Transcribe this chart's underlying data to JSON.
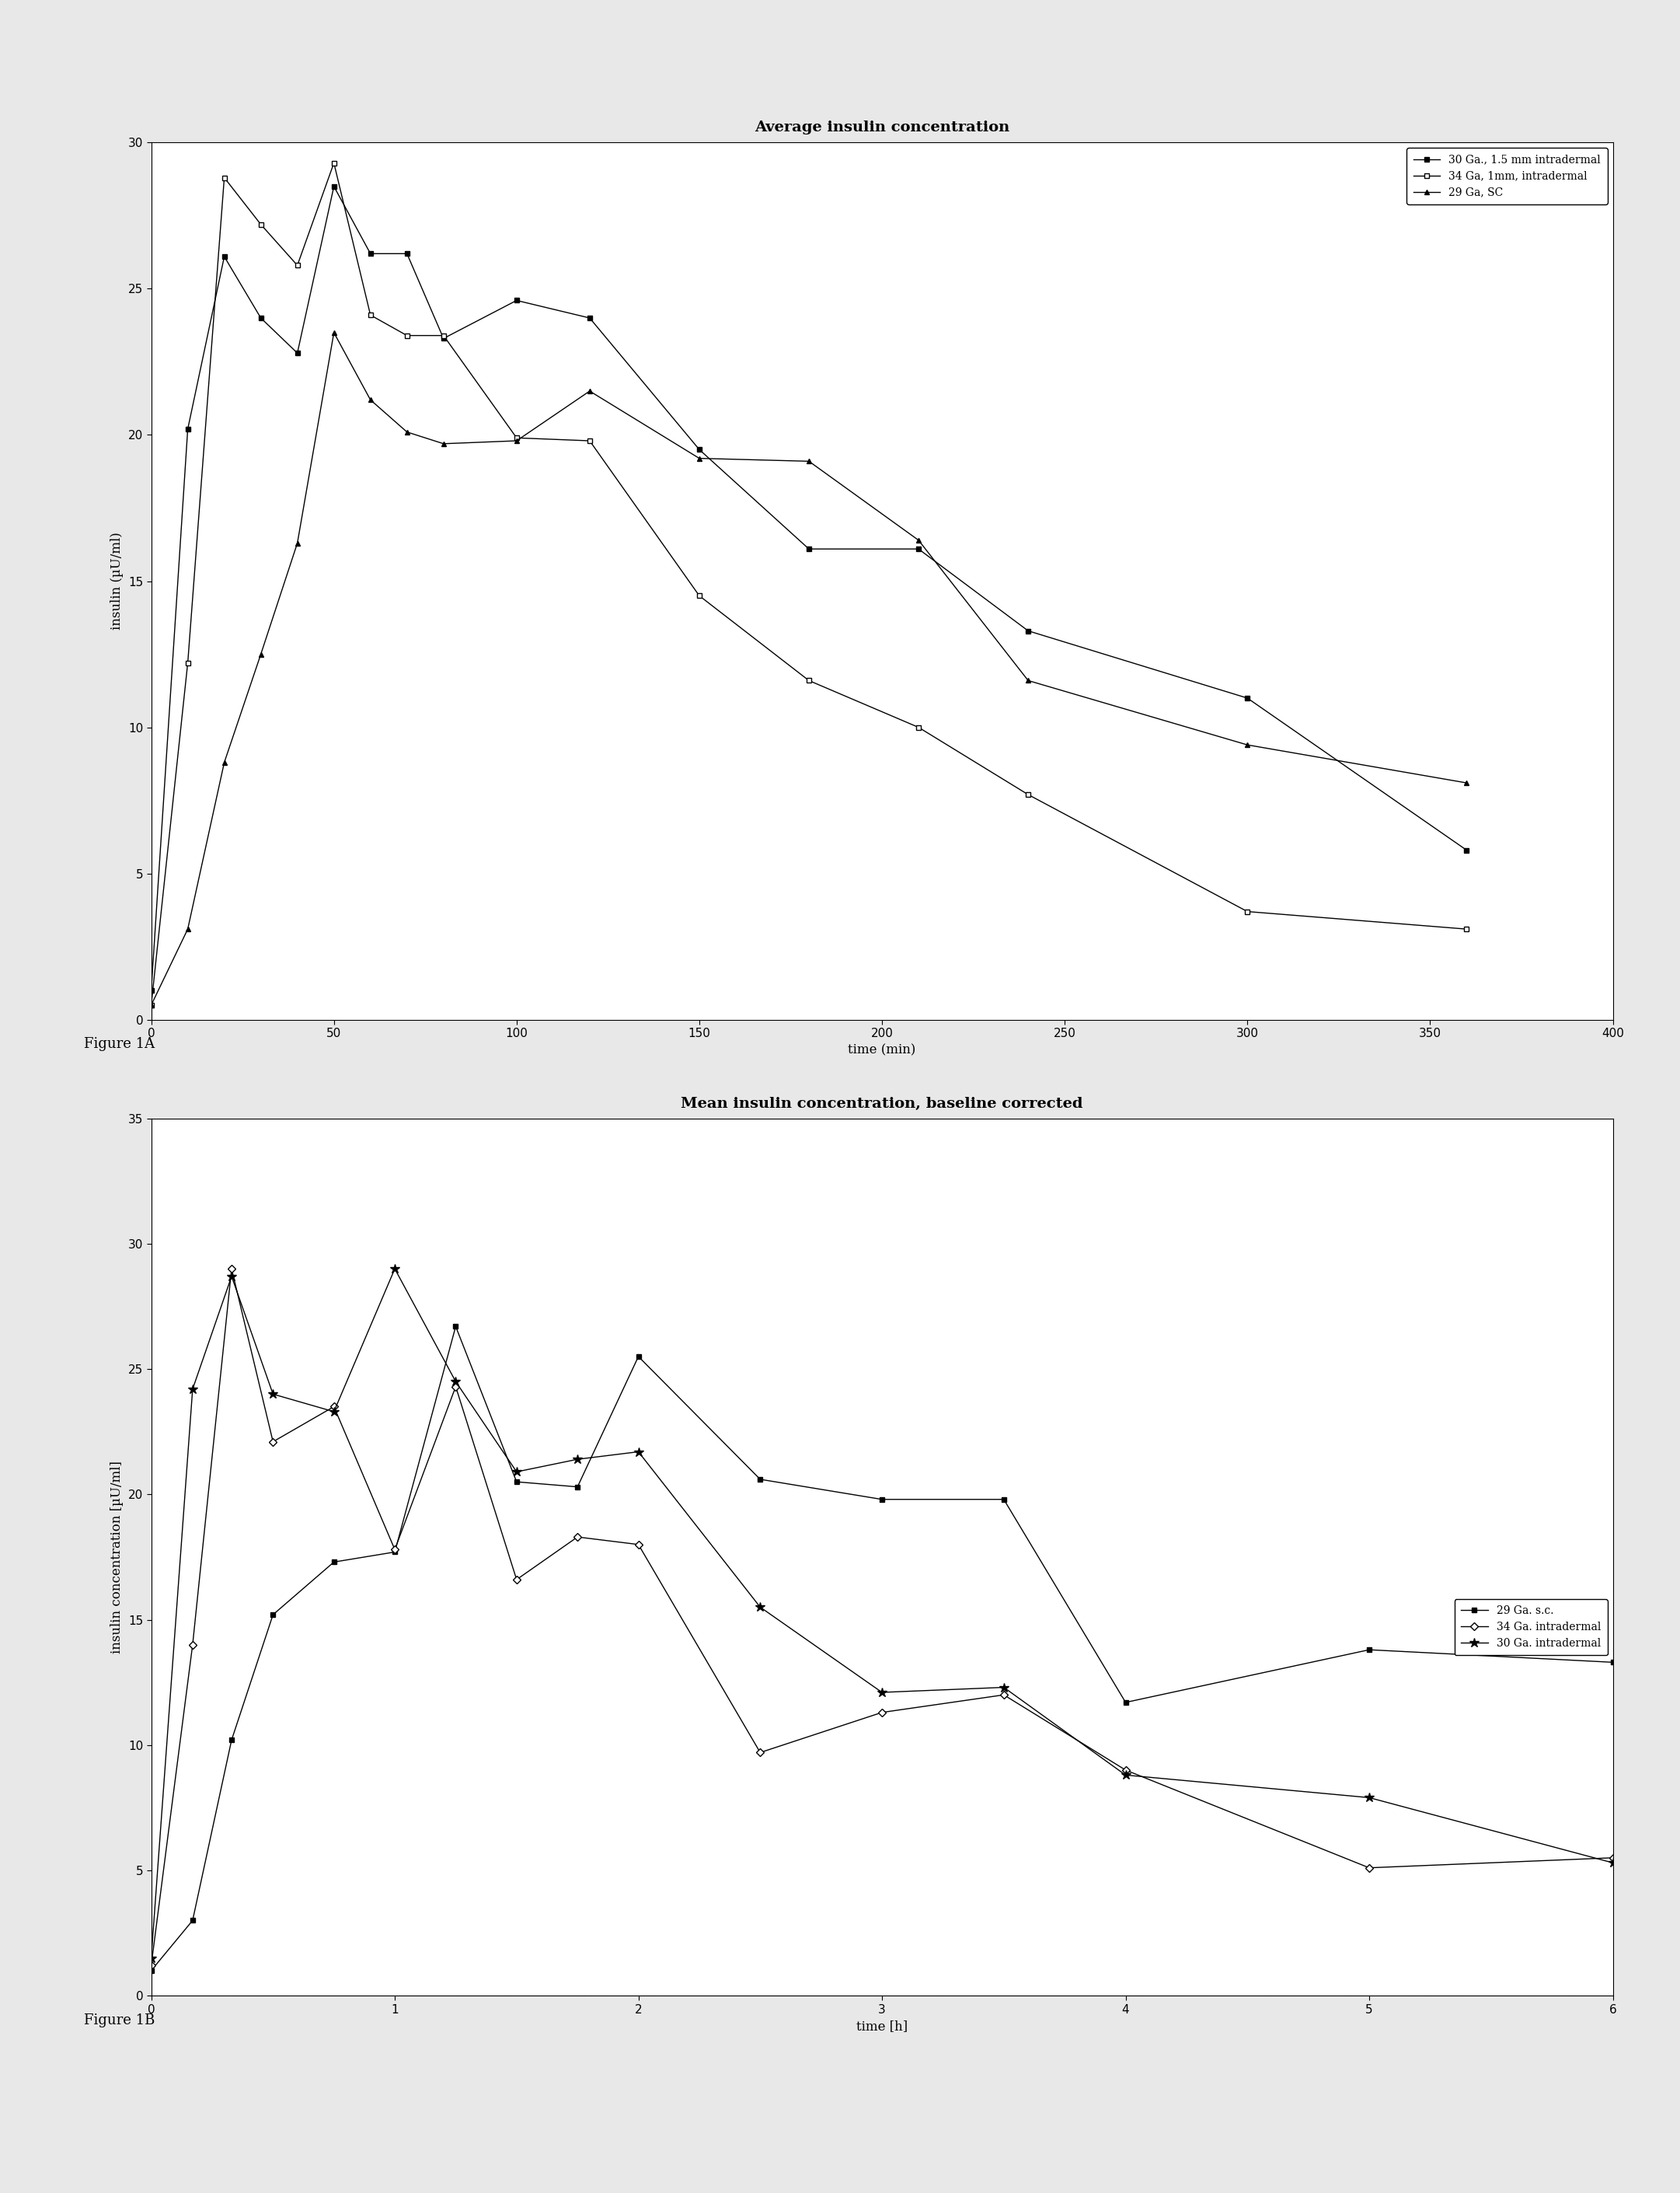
{
  "fig1A": {
    "title": "Average insulin concentration",
    "xlabel": "time (min)",
    "ylabel": "insulin (µU/ml)",
    "xlim": [
      0,
      400
    ],
    "ylim": [
      0,
      30
    ],
    "yticks": [
      0,
      5,
      10,
      15,
      20,
      25,
      30
    ],
    "xticks": [
      0,
      50,
      100,
      150,
      200,
      250,
      300,
      350,
      400
    ],
    "series": [
      {
        "label": "30 Ga., 1.5 mm intradermal",
        "x": [
          0,
          10,
          20,
          30,
          40,
          50,
          60,
          70,
          80,
          100,
          120,
          150,
          180,
          210,
          240,
          300,
          360
        ],
        "y": [
          1.0,
          20.2,
          26.1,
          24.0,
          22.8,
          28.5,
          26.2,
          26.2,
          23.3,
          24.6,
          24.0,
          19.5,
          16.1,
          16.1,
          13.3,
          11.0,
          5.8
        ],
        "marker": "s",
        "marker_fill": "black",
        "linestyle": "-",
        "color": "black"
      },
      {
        "label": "34 Ga, 1mm, intradermal",
        "x": [
          0,
          10,
          20,
          30,
          40,
          50,
          60,
          70,
          80,
          100,
          120,
          150,
          180,
          210,
          240,
          300,
          360
        ],
        "y": [
          0.5,
          12.2,
          28.8,
          27.2,
          25.8,
          29.3,
          24.1,
          23.4,
          23.4,
          19.9,
          19.8,
          14.5,
          11.6,
          10.0,
          7.7,
          3.7,
          3.1
        ],
        "marker": "s",
        "marker_fill": "white",
        "linestyle": "-",
        "color": "black"
      },
      {
        "label": "29 Ga, SC",
        "x": [
          0,
          10,
          20,
          30,
          40,
          50,
          60,
          70,
          80,
          100,
          120,
          150,
          180,
          210,
          240,
          300,
          360
        ],
        "y": [
          0.5,
          3.1,
          8.8,
          12.5,
          16.3,
          23.5,
          21.2,
          20.1,
          19.7,
          19.8,
          21.5,
          19.2,
          19.1,
          16.4,
          11.6,
          9.4,
          8.1
        ],
        "marker": "^",
        "marker_fill": "black",
        "linestyle": "-",
        "color": "black"
      }
    ]
  },
  "fig1B": {
    "title": "Mean insulin concentration, baseline corrected",
    "xlabel": "time [h]",
    "ylabel": "insulin concentration [µU/ml]",
    "xlim": [
      0,
      6
    ],
    "ylim": [
      0,
      35
    ],
    "yticks": [
      0,
      5,
      10,
      15,
      20,
      25,
      30,
      35
    ],
    "xticks": [
      0,
      1,
      2,
      3,
      4,
      5,
      6
    ],
    "series": [
      {
        "label": "29 Ga. s.c.",
        "x": [
          0,
          0.17,
          0.33,
          0.5,
          0.75,
          1.0,
          1.25,
          1.5,
          1.75,
          2.0,
          2.5,
          3.0,
          3.5,
          4.0,
          5.0,
          6.0
        ],
        "y": [
          1.0,
          3.0,
          10.2,
          15.2,
          17.3,
          17.7,
          26.7,
          20.5,
          20.3,
          25.5,
          20.6,
          19.8,
          19.8,
          11.7,
          13.8,
          13.3
        ],
        "marker": "s",
        "marker_fill": "black",
        "linestyle": "-",
        "color": "black"
      },
      {
        "label": "34 Ga. intradermal",
        "x": [
          0,
          0.17,
          0.33,
          0.5,
          0.75,
          1.0,
          1.25,
          1.5,
          1.75,
          2.0,
          2.5,
          3.0,
          3.5,
          4.0,
          5.0,
          6.0
        ],
        "y": [
          1.2,
          14.0,
          29.0,
          22.1,
          23.5,
          17.8,
          24.3,
          16.6,
          18.3,
          18.0,
          9.7,
          11.3,
          12.0,
          9.0,
          5.1,
          5.5
        ],
        "marker": "D",
        "marker_fill": "white",
        "linestyle": "-",
        "color": "black"
      },
      {
        "label": "30 Ga. intradermal",
        "x": [
          0,
          0.17,
          0.33,
          0.5,
          0.75,
          1.0,
          1.25,
          1.5,
          1.75,
          2.0,
          2.5,
          3.0,
          3.5,
          4.0,
          5.0,
          6.0
        ],
        "y": [
          1.5,
          24.2,
          28.7,
          24.0,
          23.3,
          29.0,
          24.5,
          20.9,
          21.4,
          21.7,
          15.5,
          12.1,
          12.3,
          8.8,
          7.9,
          5.3
        ],
        "marker": "*",
        "marker_fill": "black",
        "linestyle": "-",
        "color": "black"
      }
    ]
  },
  "background_color": "#ffffff",
  "page_color": "#e8e8e8",
  "figure1A_label": "Figure 1A",
  "figure1B_label": "Figure 1B"
}
